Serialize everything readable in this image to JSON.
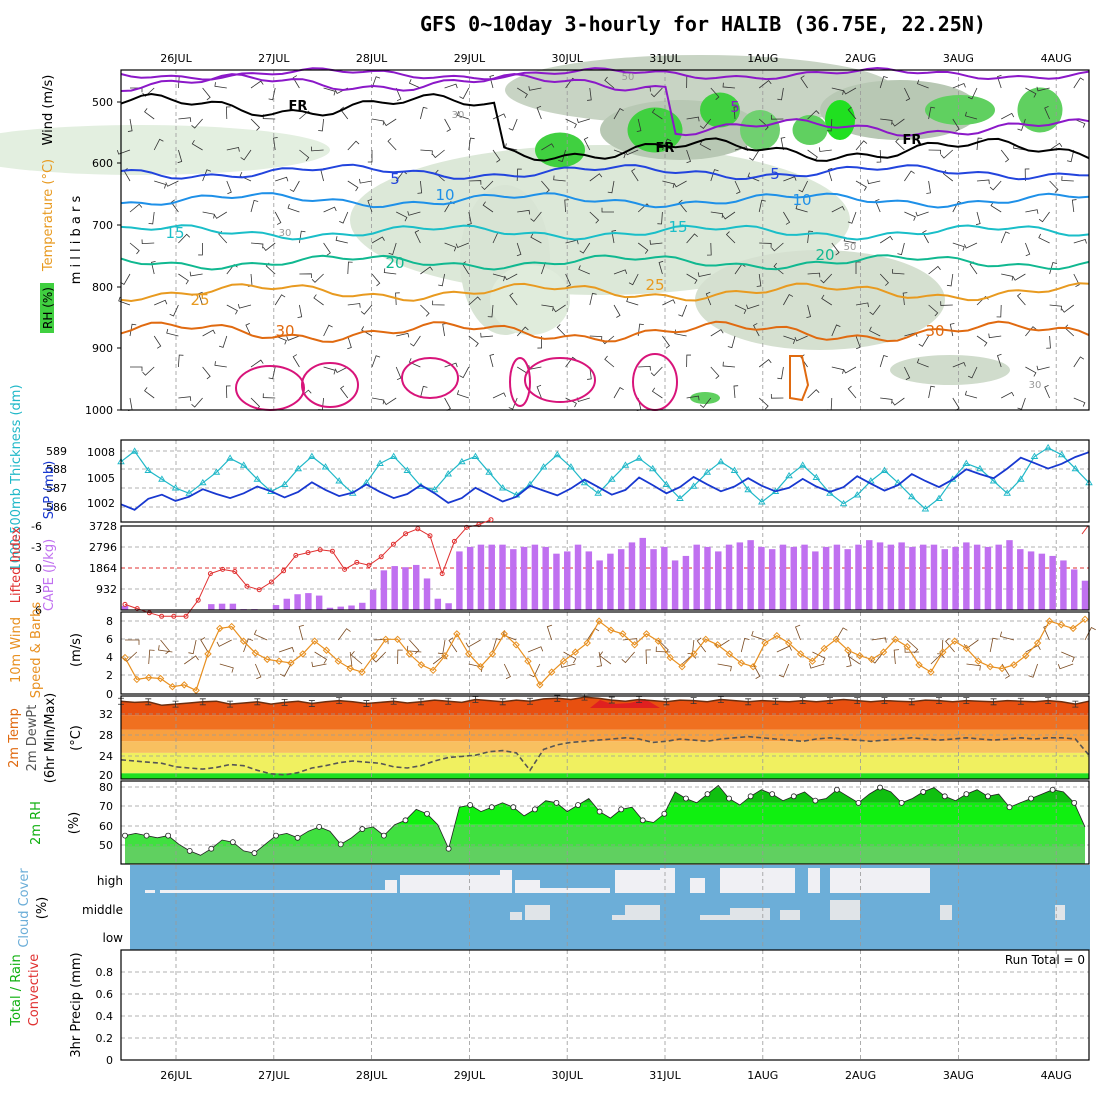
{
  "title": "GFS 0~10day 3-hourly for HALIB (36.75E, 22.25N)",
  "colors": {
    "purple": "#8B18C8",
    "blue_dark": "#2244DD",
    "blue_mid": "#1E90E8",
    "teal": "#1ABEC8",
    "green_t": "#10B890",
    "orange": "#E89A20",
    "orange_dk": "#E06A10",
    "magenta": "#D8147A",
    "cyan_line": "#20B8C8",
    "slp_blue": "#1838D0",
    "cape_bar": "#C070F0",
    "li_red": "#E03030",
    "wind_orange": "#E89020",
    "rh_green": "#10E010",
    "cloud_blue": "#6CAED8",
    "cloud_white": "#F0F0F4"
  },
  "chart_data": [
    {
      "type": "heatmap",
      "name": "upper-air",
      "dates": [
        "26JUL",
        "27JUL",
        "28JUL",
        "29JUL",
        "30JUL",
        "31JUL",
        "1AUG",
        "2AUG",
        "3AUG",
        "4AUG"
      ],
      "ylabel": "m i l l i b a r s",
      "ylabels_left": [
        "Wind (m/s)",
        "Temperature (°C)",
        "RH (%)"
      ],
      "yticks": [
        "500",
        "600",
        "700",
        "800",
        "900",
        "1000"
      ],
      "contour_labels": [
        "FR",
        "FR",
        "FR",
        "5",
        "5",
        "5",
        "10",
        "10",
        "15",
        "15",
        "20",
        "20",
        "25",
        "25",
        "30",
        "30",
        "30",
        "30",
        "50",
        "50",
        "30"
      ]
    },
    {
      "type": "line",
      "name": "slp-thickness",
      "ylabel_left": "1000-500mb Thickness (dm)",
      "ylabel_right": "SLP (mb)",
      "thick_ticks": [
        "589",
        "588",
        "587",
        "586"
      ],
      "slp_ticks": [
        "1008",
        "1005",
        "1002"
      ],
      "thickness": [
        588.6,
        589.2,
        588.1,
        587.6,
        587.1,
        586.8,
        587.4,
        588.0,
        588.8,
        588.4,
        587.6,
        586.9,
        587.3,
        588.2,
        588.9,
        588.3,
        587.5,
        586.8,
        587.4,
        588.5,
        588.9,
        588.1,
        587.2,
        587.0,
        587.9,
        588.6,
        588.9,
        588.0,
        587.1,
        586.7,
        587.3,
        588.3,
        589.0,
        588.3,
        587.4,
        586.8,
        587.6,
        588.4,
        588.8,
        588.2,
        587.3,
        586.5,
        587.2,
        588.0,
        588.6,
        588.1,
        587.0,
        586.3,
        586.9,
        587.8,
        588.4,
        587.7,
        586.8,
        586.2,
        586.7,
        587.5,
        588.1,
        587.4,
        586.6,
        585.9,
        586.5,
        587.6,
        588.5,
        588.2,
        587.5,
        586.8,
        587.6,
        588.9,
        589.4,
        589.0,
        588.2,
        587.4
      ],
      "slp": [
        1001.0,
        1000.2,
        1001.8,
        1002.4,
        1001.5,
        1002.1,
        1003.2,
        1002.5,
        1001.9,
        1002.6,
        1003.6,
        1002.9,
        1002.0,
        1002.8,
        1004.2,
        1003.1,
        1002.2,
        1002.7,
        1003.9,
        1002.8,
        1001.9,
        1002.5,
        1003.8,
        1002.6,
        1001.2,
        1001.9,
        1003.4,
        1002.4,
        1001.4,
        1002.1,
        1003.7,
        1003.0,
        1002.3,
        1003.3,
        1004.6,
        1003.5,
        1002.4,
        1003.1,
        1004.9,
        1003.8,
        1002.6,
        1003.5,
        1005.0,
        1003.9,
        1002.9,
        1003.6,
        1004.8,
        1003.7,
        1002.9,
        1003.4,
        1004.7,
        1003.6,
        1002.8,
        1003.5,
        1005.1,
        1004.0,
        1003.0,
        1003.8,
        1005.4,
        1004.4,
        1003.5,
        1004.6,
        1006.1,
        1005.4,
        1004.8,
        1006.2,
        1007.8,
        1007.0,
        1006.2,
        1006.9,
        1007.9,
        1008.6
      ]
    },
    {
      "type": "bar",
      "name": "cape-li",
      "ylabel_left": "Lifted Index",
      "ylabel_right": "CAPE (J/kg)",
      "li_ticks": [
        "-6",
        "-3",
        "0",
        "3",
        "6"
      ],
      "cape_ticks": [
        "3728",
        "2796",
        "1864",
        "932"
      ],
      "ylim": [
        0,
        3728
      ],
      "cape": [
        180,
        20,
        0,
        0,
        0,
        0,
        0,
        20,
        260,
        280,
        280,
        40,
        40,
        20,
        220,
        500,
        700,
        750,
        640,
        100,
        150,
        200,
        320,
        900,
        1760,
        1950,
        1900,
        2000,
        1400,
        500,
        300,
        2600,
        2800,
        2900,
        2900,
        2900,
        2700,
        2800,
        2900,
        2800,
        2500,
        2600,
        2900,
        2600,
        2200,
        2500,
        2700,
        3000,
        3200,
        2700,
        2800,
        2200,
        2400,
        2900,
        2800,
        2600,
        2900,
        3000,
        3100,
        2800,
        2700,
        2900,
        2800,
        2900,
        2600,
        2800,
        2900,
        2700,
        2900,
        3100,
        3000,
        2900,
        3000,
        2800,
        2900,
        2900,
        2700,
        2800,
        3000,
        2900,
        2800,
        2900,
        3100,
        2700,
        2600,
        2500,
        2400,
        2200,
        1800,
        1300
      ],
      "li": [
        5.2,
        5.8,
        6.4,
        6.9,
        6.9,
        6.9,
        4.6,
        0.8,
        0.2,
        0.5,
        2.6,
        3.1,
        2.0,
        0.4,
        -1.8,
        -2.2,
        -2.6,
        -2.4,
        0.2,
        -0.8,
        -0.4,
        -1.6,
        -3.4,
        -4.9,
        -5.6,
        -4.6,
        0.8,
        -3.8,
        -5.8,
        -6.2,
        -6.9
      ]
    },
    {
      "type": "line",
      "name": "wind-10m",
      "ylabel": "10m Wind Speed & Barbs (m/s)",
      "yticks": [
        "0",
        "2",
        "4",
        "6",
        "8"
      ],
      "ylim": [
        0,
        9
      ],
      "speed": [
        4.0,
        1.6,
        1.8,
        1.7,
        0.8,
        1.0,
        0.4,
        4.4,
        7.2,
        7.4,
        5.8,
        4.5,
        3.8,
        3.6,
        3.4,
        4.4,
        5.8,
        4.8,
        3.6,
        2.8,
        2.4,
        4.2,
        6.0,
        6.0,
        4.4,
        3.2,
        2.6,
        4.2,
        6.6,
        4.4,
        3.0,
        4.4,
        6.6,
        5.4,
        3.6,
        1.0,
        2.4,
        3.6,
        4.6,
        5.6,
        8.0,
        7.0,
        6.6,
        5.4,
        6.6,
        5.8,
        4.0,
        3.0,
        4.4,
        6.0,
        5.4,
        4.4,
        3.4,
        3.0,
        5.6,
        6.4,
        5.6,
        4.4,
        3.6,
        5.0,
        6.0,
        4.8,
        4.2,
        3.8,
        4.6,
        6.0,
        5.2,
        3.2,
        2.4,
        4.6,
        5.8,
        5.0,
        3.6,
        3.0,
        2.8,
        3.2,
        4.2,
        5.6,
        8.0,
        7.6,
        7.2,
        8.2
      ]
    },
    {
      "type": "area",
      "name": "temp-dewpt",
      "ylabel": "2m Temp 2m DewPt (6hr Min/Max) (°C)",
      "yticks": [
        "20",
        "24",
        "28",
        "32"
      ],
      "ylim": [
        19.5,
        33.8
      ],
      "dewpoint": [
        22.8,
        22.6,
        22.4,
        22.2,
        21.6,
        21.4,
        21.2,
        21.5,
        22.0,
        21.8,
        21.0,
        20.4,
        20.2,
        20.6,
        21.4,
        21.8,
        22.3,
        22.6,
        22.4,
        22.2,
        21.6,
        21.4,
        21.8,
        22.6,
        23.2,
        23.4,
        23.6,
        24.2,
        24.4,
        24.0,
        21.0,
        24.6,
        25.4,
        25.8,
        26.0,
        26.2,
        26.4,
        26.6,
        26.4,
        25.8,
        26.0,
        26.4,
        26.2,
        26.0,
        26.4,
        26.6,
        26.8,
        26.6,
        26.4,
        26.2,
        26.0,
        26.4,
        26.6,
        26.4,
        26.2,
        26.0,
        26.2,
        26.4,
        26.6,
        26.4,
        26.2,
        26.4,
        26.6,
        26.4,
        26.2,
        26.4,
        26.6,
        26.4,
        26.6,
        26.6,
        26.4,
        23.6
      ],
      "temp": [
        32.9,
        32.7,
        32.8,
        32.2,
        32.4,
        32.6,
        32.8,
        32.9,
        32.4,
        32.6,
        32.8,
        32.4,
        32.7,
        32.9,
        32.5,
        32.8,
        33.0,
        32.8,
        32.5,
        32.7,
        32.9,
        32.6,
        32.8,
        33.1,
        32.9,
        32.7,
        33.2,
        33.0,
        32.8,
        33.1,
        32.9,
        33.3,
        33.4,
        33.2,
        33.6,
        33.4,
        33.1,
        32.9,
        33.2,
        33.0,
        32.8,
        33.1,
        33.0,
        32.8,
        33.2,
        33.0,
        32.8,
        33.0,
        32.9,
        32.8,
        33.0,
        32.8,
        33.0,
        33.2,
        33.0,
        32.8,
        33.0,
        32.9,
        32.8,
        33.1,
        33.0,
        32.8,
        33.0,
        32.9,
        32.8,
        33.0,
        32.9,
        32.8,
        33.0,
        32.8,
        32.4,
        32.9
      ]
    },
    {
      "type": "area",
      "name": "rh-2m",
      "ylabel": "2m RH (%)",
      "yticks": [
        "50",
        "60",
        "70",
        "80"
      ],
      "ylim": [
        42,
        80
      ],
      "rh": [
        55,
        56,
        55,
        54,
        55,
        51,
        48,
        46,
        49,
        53,
        52,
        48,
        47,
        51,
        55,
        56,
        54,
        57,
        59,
        57,
        51,
        54,
        58,
        59,
        55,
        60,
        62,
        67,
        65,
        60,
        49,
        68,
        69,
        66,
        68,
        70,
        68,
        64,
        67,
        71,
        70,
        66,
        69,
        72,
        66,
        63,
        67,
        68,
        62,
        61,
        65,
        75,
        72,
        70,
        74,
        78,
        72,
        69,
        73,
        76,
        74,
        71,
        73,
        75,
        71,
        72,
        76,
        73,
        70,
        74,
        77,
        75,
        70,
        72,
        75,
        77,
        73,
        71,
        74,
        76,
        73,
        74,
        68,
        70,
        72,
        74,
        76,
        75,
        70,
        59
      ]
    },
    {
      "type": "heatmap",
      "name": "cloud-cover",
      "ylabel": "Cloud Cover (%)",
      "levels": [
        "high",
        "middle",
        "low"
      ]
    },
    {
      "type": "bar",
      "name": "precip",
      "ylabel_left": "Total / Rain Convective",
      "ylabel": "3hr Precip (mm)",
      "yticks": [
        "0",
        "0.2",
        "0.4",
        "0.6",
        "0.8"
      ],
      "ylim": [
        0,
        1
      ],
      "run_total": "Run Total = 0",
      "dates": [
        "26JUL",
        "27JUL",
        "28JUL",
        "29JUL",
        "30JUL",
        "31JUL",
        "1AUG",
        "2AUG",
        "3AUG",
        "4AUG"
      ]
    }
  ]
}
